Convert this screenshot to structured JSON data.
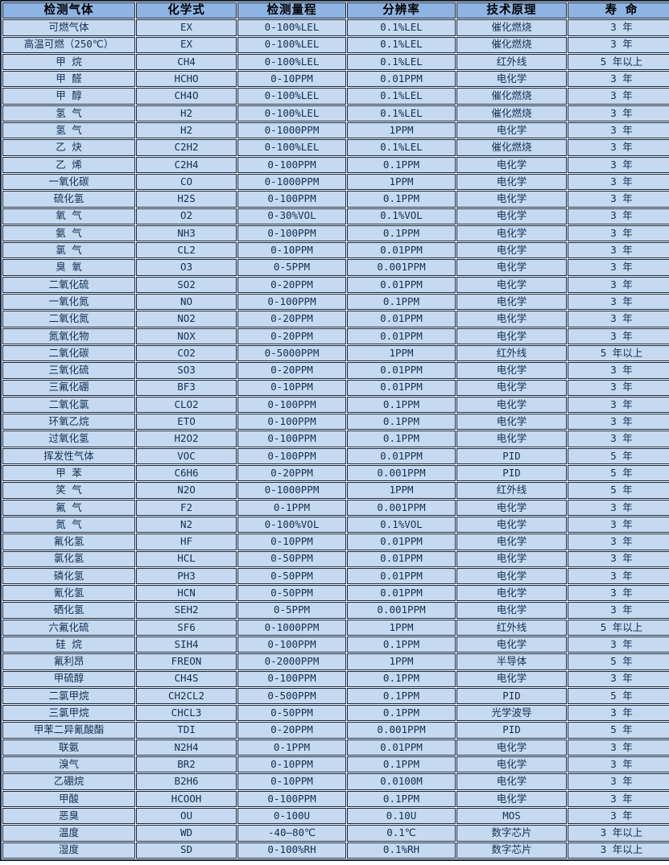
{
  "colors": {
    "header_bg": "#8DB4E2",
    "row_bg": "#C5D9F1",
    "border": "#16273D",
    "text": "#14304F"
  },
  "table": {
    "headers": [
      "检测气体",
      "化学式",
      "检测量程",
      "分辨率",
      "技术原理",
      "寿 命"
    ],
    "rows": [
      [
        "可燃气体",
        "EX",
        "0-100%LEL",
        "0.1%LEL",
        "催化燃烧",
        "3 年"
      ],
      [
        "高温可燃（250℃）",
        "EX",
        "0-100%LEL",
        "0.1%LEL",
        "催化燃烧",
        "3 年"
      ],
      [
        "甲 烷",
        "CH4",
        "0-100%LEL",
        "0.1%LEL",
        "红外线",
        "5 年以上"
      ],
      [
        "甲 醛",
        "HCHO",
        "0-10PPM",
        "0.01PPM",
        "电化学",
        "3 年"
      ],
      [
        "甲 醇",
        "CH4O",
        "0-100%LEL",
        "0.1%LEL",
        "催化燃烧",
        "3 年"
      ],
      [
        "氢 气",
        "H2",
        "0-100%LEL",
        "0.1%LEL",
        "催化燃烧",
        "3 年"
      ],
      [
        "氢 气",
        "H2",
        "0-1000PPM",
        "1PPM",
        "电化学",
        "3 年"
      ],
      [
        "乙 炔",
        "C2H2",
        "0-100%LEL",
        "0.1%LEL",
        "催化燃烧",
        "3 年"
      ],
      [
        "乙 烯",
        "C2H4",
        "0-100PPM",
        "0.1PPM",
        "电化学",
        "3 年"
      ],
      [
        "一氧化碳",
        "CO",
        "0-1000PPM",
        "1PPM",
        "电化学",
        "3 年"
      ],
      [
        "硫化氢",
        "H2S",
        "0-100PPM",
        "0.1PPM",
        "电化学",
        "3 年"
      ],
      [
        "氧 气",
        "O2",
        "0-30%VOL",
        "0.1%VOL",
        "电化学",
        "3 年"
      ],
      [
        "氨 气",
        "NH3",
        "0-100PPM",
        "0.1PPM",
        "电化学",
        "3 年"
      ],
      [
        "氯 气",
        "CL2",
        "0-10PPM",
        "0.01PPM",
        "电化学",
        "3 年"
      ],
      [
        "臭 氧",
        "O3",
        "0-5PPM",
        "0.001PPM",
        "电化学",
        "3 年"
      ],
      [
        "二氧化硫",
        "SO2",
        "0-20PPM",
        "0.01PPM",
        "电化学",
        "3 年"
      ],
      [
        "一氧化氮",
        "NO",
        "0-100PPM",
        "0.1PPM",
        "电化学",
        "3 年"
      ],
      [
        "二氧化氮",
        "NO2",
        "0-20PPM",
        "0.01PPM",
        "电化学",
        "3 年"
      ],
      [
        "氮氧化物",
        "NOX",
        "0-20PPM",
        "0.01PPM",
        "电化学",
        "3 年"
      ],
      [
        "二氧化碳",
        "CO2",
        "0-5000PPM",
        "1PPM",
        "红外线",
        "5 年以上"
      ],
      [
        "三氧化硫",
        "SO3",
        "0-20PPM",
        "0.01PPM",
        "电化学",
        "3 年"
      ],
      [
        "三氟化硼",
        "BF3",
        "0-10PPM",
        "0.01PPM",
        "电化学",
        "3 年"
      ],
      [
        "二氧化氯",
        "CLO2",
        "0-100PPM",
        "0.1PPM",
        "电化学",
        "3 年"
      ],
      [
        "环氧乙烷",
        "ETO",
        "0-100PPM",
        "0.1PPM",
        "电化学",
        "3 年"
      ],
      [
        "过氧化氢",
        "H2O2",
        "0-100PPM",
        "0.1PPM",
        "电化学",
        "3 年"
      ],
      [
        "挥发性气体",
        "VOC",
        "0-100PPM",
        "0.01PPM",
        "PID",
        "5 年"
      ],
      [
        "甲 苯",
        "C6H6",
        "0-20PPM",
        "0.001PPM",
        "PID",
        "5 年"
      ],
      [
        "笑 气",
        "N2O",
        "0-1000PPM",
        "1PPM",
        "红外线",
        "5 年"
      ],
      [
        "氟 气",
        "F2",
        "0-1PPM",
        "0.001PPM",
        "电化学",
        "3 年"
      ],
      [
        "氮 气",
        "N2",
        "0-100%VOL",
        "0.1%VOL",
        "电化学",
        "3 年"
      ],
      [
        "氟化氢",
        "HF",
        "0-10PPM",
        "0.01PPM",
        "电化学",
        "3 年"
      ],
      [
        "氯化氢",
        "HCL",
        "0-50PPM",
        "0.01PPM",
        "电化学",
        "3 年"
      ],
      [
        "磷化氢",
        "PH3",
        "0-50PPM",
        "0.01PPM",
        "电化学",
        "3 年"
      ],
      [
        "氰化氢",
        "HCN",
        "0-50PPM",
        "0.01PPM",
        "电化学",
        "3 年"
      ],
      [
        "硒化氢",
        "SEH2",
        "0-5PPM",
        "0.001PPM",
        "电化学",
        "3 年"
      ],
      [
        "六氟化硫",
        "SF6",
        "0-1000PPM",
        "1PPM",
        "红外线",
        "5 年以上"
      ],
      [
        "硅 烷",
        "SIH4",
        "0-100PPM",
        "0.1PPM",
        "电化学",
        "3 年"
      ],
      [
        "氟利昂",
        "FREON",
        "0-2000PPM",
        "1PPM",
        "半导体",
        "5 年"
      ],
      [
        "甲硫醇",
        "CH4S",
        "0-100PPM",
        "0.1PPM",
        "电化学",
        "3 年"
      ],
      [
        "二氯甲烷",
        "CH2CL2",
        "0-500PPM",
        "0.1PPM",
        "PID",
        "5 年"
      ],
      [
        "三氯甲烷",
        "CHCL3",
        "0-50PPM",
        "0.1PPM",
        "光学波导",
        "3 年"
      ],
      [
        "甲苯二异氰酸酯",
        "TDI",
        "0-20PPM",
        "0.001PPM",
        "PID",
        "5 年"
      ],
      [
        "联氨",
        "N2H4",
        "0-1PPM",
        "0.01PPM",
        "电化学",
        "3 年"
      ],
      [
        "溴气",
        "BR2",
        "0-10PPM",
        "0.1PPM",
        "电化学",
        "3 年"
      ],
      [
        "乙硼烷",
        "B2H6",
        "0-10PPM",
        "0.0100M",
        "电化学",
        "3 年"
      ],
      [
        "甲酸",
        "HCOOH",
        "0-100PPM",
        "0.1PPM",
        "电化学",
        "3 年"
      ],
      [
        "恶臭",
        "OU",
        "0-100U",
        "0.10U",
        "MOS",
        "3 年"
      ],
      [
        "温度",
        "WD",
        "-40—80℃",
        "0.1℃",
        "数字芯片",
        "3 年以上"
      ],
      [
        "湿度",
        "SD",
        "0-100%RH",
        "0.1%RH",
        "数字芯片",
        "3 年以上"
      ]
    ]
  }
}
